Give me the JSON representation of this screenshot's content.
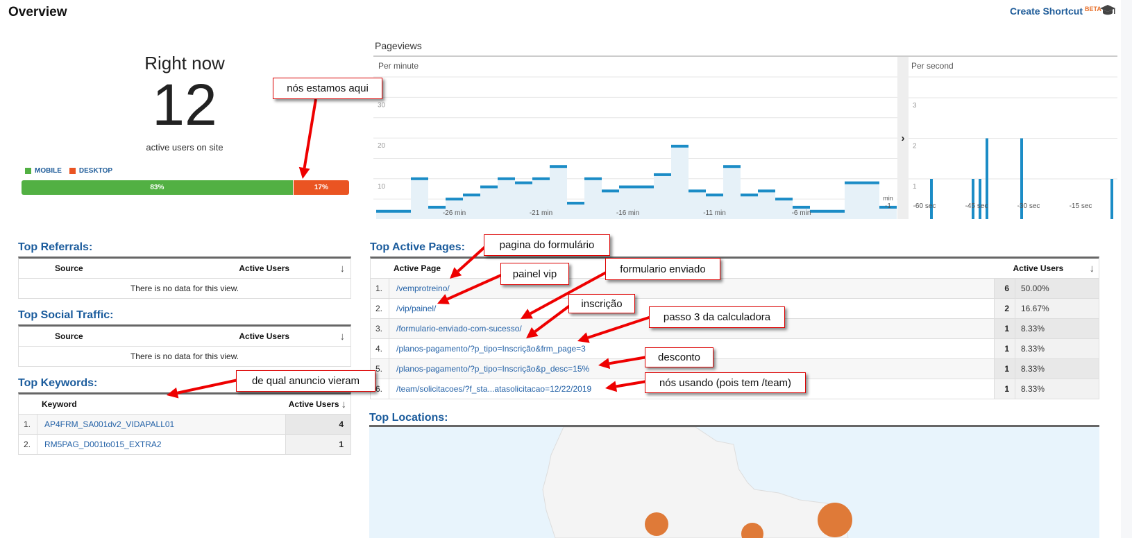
{
  "header": {
    "title": "Overview",
    "create_shortcut": "Create Shortcut",
    "beta": "BETA",
    "icon": "graduation-cap-icon"
  },
  "right_now": {
    "title": "Right now",
    "count": "12",
    "subtitle": "active users on site",
    "legend": [
      {
        "label": "MOBILE",
        "color": "#52b043"
      },
      {
        "label": "DESKTOP",
        "color": "#ea5422"
      }
    ],
    "split": [
      {
        "label": "83%",
        "percent": 83
      },
      {
        "label": "17%",
        "percent": 17
      }
    ]
  },
  "pageviews": {
    "title": "Pageviews",
    "per_minute": "Per minute",
    "per_second": "Per second",
    "expand_icon": "chevron-right-icon"
  },
  "chart_data": [
    {
      "type": "bar",
      "title": "Per minute",
      "x": [
        -30,
        -29,
        -28,
        -27,
        -26,
        -25,
        -24,
        -23,
        -22,
        -21,
        -20,
        -19,
        -18,
        -17,
        -16,
        -15,
        -14,
        -13,
        -12,
        -11,
        -10,
        -9,
        -8,
        -7,
        -6,
        -5,
        -4,
        -3,
        -2,
        -1
      ],
      "values": [
        2,
        2,
        10,
        3,
        5,
        6,
        8,
        10,
        9,
        10,
        13,
        4,
        10,
        7,
        8,
        8,
        11,
        18,
        7,
        6,
        13,
        6,
        7,
        5,
        3,
        2,
        2,
        9,
        9,
        3
      ],
      "yticks": [
        "10",
        "20",
        "30"
      ],
      "xticks": [
        "-26 min",
        "-21 min",
        "-16 min",
        "-11 min",
        "-6 min"
      ],
      "last_tick": [
        "min",
        "-1"
      ],
      "ylim": [
        0,
        35
      ],
      "grid": true,
      "color": "#1b8cc6"
    },
    {
      "type": "bar",
      "title": "Per second",
      "x": [
        -58,
        -46,
        -44,
        -42,
        -32,
        -6
      ],
      "values": [
        1,
        1,
        1,
        2,
        2,
        1
      ],
      "yticks": [
        "1",
        "2",
        "3"
      ],
      "xticks": [
        "-60 sec",
        "-45 sec",
        "-30 sec",
        "-15 sec"
      ],
      "ylim": [
        0,
        3
      ],
      "grid": true,
      "color": "#1b8cc6"
    }
  ],
  "referrals": {
    "title": "Top Referrals:",
    "col1": "Source",
    "col2": "Active Users",
    "empty": "There is no data for this view."
  },
  "social": {
    "title": "Top Social Traffic:",
    "col1": "Source",
    "col2": "Active Users",
    "empty": "There is no data for this view."
  },
  "keywords": {
    "title": "Top Keywords:",
    "col1": "Keyword",
    "col2": "Active Users",
    "rows": [
      {
        "n": "1.",
        "keyword": "AP4FRM_SA001dv2_VIDAPALL01",
        "users": "4"
      },
      {
        "n": "2.",
        "keyword": "RM5PAG_D001to015_EXTRA2",
        "users": "1"
      }
    ]
  },
  "pages": {
    "title": "Top Active Pages:",
    "col1": "Active Page",
    "col2": "Active Users",
    "rows": [
      {
        "n": "1.",
        "page": "/vemprotreino/",
        "users": "6",
        "pct": "50.00%"
      },
      {
        "n": "2.",
        "page": "/vip/painel/",
        "users": "2",
        "pct": "16.67%"
      },
      {
        "n": "3.",
        "page": "/formulario-enviado-com-sucesso/",
        "users": "1",
        "pct": "8.33%"
      },
      {
        "n": "4.",
        "page": "/planos-pagamento/?p_tipo=Inscrição&frm_page=3",
        "users": "1",
        "pct": "8.33%"
      },
      {
        "n": "5.",
        "page": "/planos-pagamento/?p_tipo=Inscrição&p_desc=15%",
        "users": "1",
        "pct": "8.33%"
      },
      {
        "n": "6.",
        "page": "/team/solicitacoes/?f_sta...atasolicitacao=12/22/2019",
        "users": "1",
        "pct": "8.33%"
      }
    ]
  },
  "locations": {
    "title": "Top Locations:"
  },
  "annotations": [
    "nós estamos aqui",
    "pagina do formulário",
    "painel vip",
    "formulario enviado",
    "inscrição",
    "passo 3 da calculadora",
    "desconto",
    "nós usando (pois tem /team)",
    "de qual anuncio vieram"
  ]
}
